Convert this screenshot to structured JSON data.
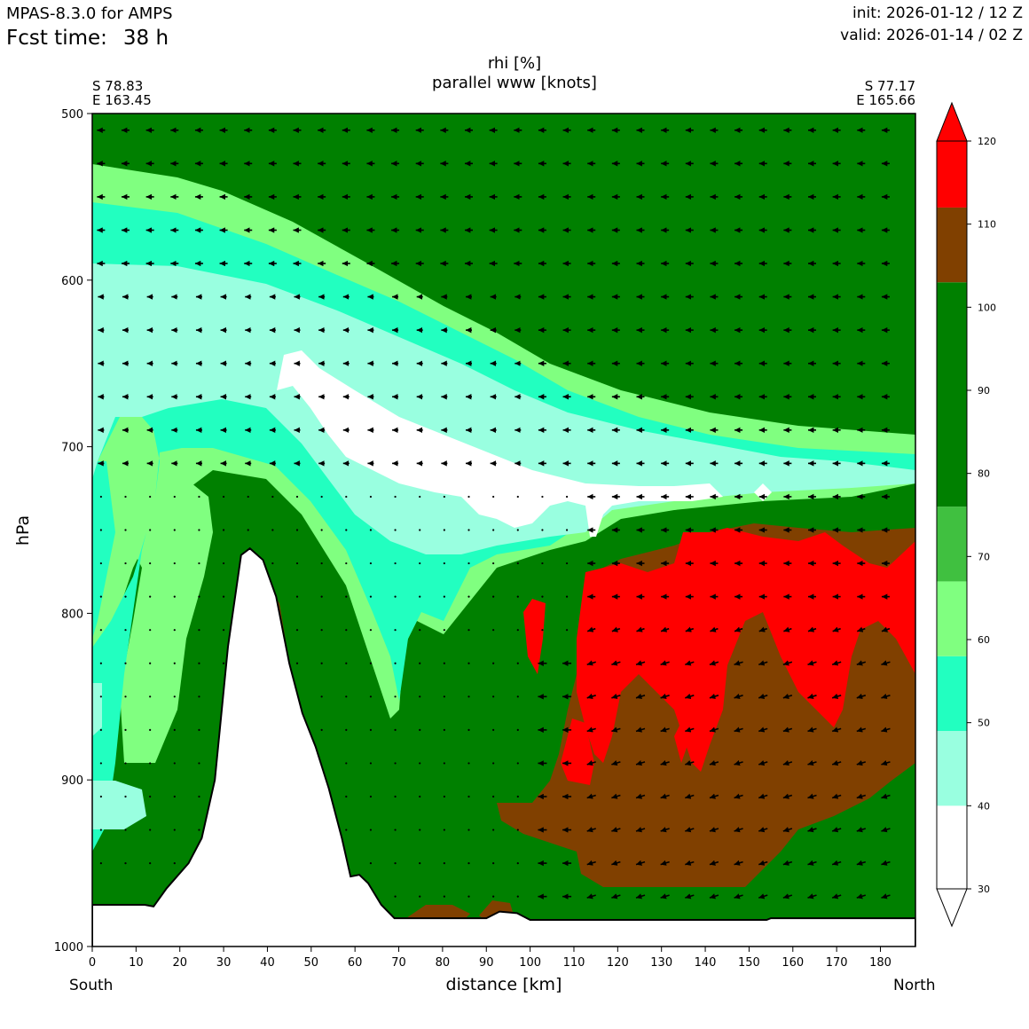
{
  "header": {
    "model": "MPAS-8.3.0 for AMPS",
    "fcst_label": "Fcst time:",
    "fcst_value": "38 h",
    "init": "init: 2026-01-12 / 12 Z",
    "valid": "valid: 2026-01-14 / 02 Z"
  },
  "endpoints": {
    "left_lat": "S 78.83",
    "left_lon": "E 163.45",
    "right_lat": "S 77.17",
    "right_lon": "E 165.66",
    "left_dir": "South",
    "right_dir": "North"
  },
  "chart_data": {
    "type": "cross-section contour",
    "title": "rhi [%]",
    "subtitle": "parallel www [knots]",
    "xlabel": "distance [km]",
    "ylabel": "hPa",
    "xlim": [
      0,
      188
    ],
    "ylim": [
      1000,
      500
    ],
    "xticks": [
      0,
      10,
      20,
      30,
      40,
      50,
      60,
      70,
      80,
      90,
      100,
      110,
      120,
      130,
      140,
      150,
      160,
      170,
      180
    ],
    "yticks": [
      500,
      600,
      700,
      800,
      900,
      1000
    ],
    "colorbar": {
      "levels": [
        30,
        40,
        50,
        60,
        70,
        80,
        90,
        100,
        110,
        120
      ],
      "colors": [
        "#ffffff",
        "#99ffe0",
        "#22ffc0",
        "#80ff80",
        "#40c040",
        "#008000",
        "#008000",
        "#804000",
        "#ff0000"
      ],
      "extend": "both",
      "under_color": "#ffffff",
      "over_color": "#ff0000"
    },
    "terrain_km_hpa": [
      [
        0,
        975
      ],
      [
        12,
        975
      ],
      [
        14,
        976
      ],
      [
        17,
        965
      ],
      [
        22,
        950
      ],
      [
        25,
        935
      ],
      [
        28,
        900
      ],
      [
        31,
        820
      ],
      [
        34,
        765
      ],
      [
        36,
        761
      ],
      [
        39,
        768
      ],
      [
        42,
        790
      ],
      [
        45,
        830
      ],
      [
        48,
        860
      ],
      [
        51,
        880
      ],
      [
        54,
        905
      ],
      [
        57,
        935
      ],
      [
        59,
        958
      ],
      [
        61,
        957
      ],
      [
        63,
        962
      ],
      [
        66,
        975
      ],
      [
        69,
        983
      ],
      [
        90,
        983
      ],
      [
        93,
        979
      ],
      [
        97,
        980
      ],
      [
        100,
        984
      ],
      [
        154,
        984
      ],
      [
        155,
        983
      ],
      [
        188,
        983
      ]
    ],
    "regions_rhi_approx": [
      {
        "rhi": "80-100",
        "where": "upper right above ~650-700 hPa and most of the lower troposphere north of 50 km"
      },
      {
        "rhi": "30-40",
        "where": "dry tongue around 650-750 hPa from ~45 to 150 km"
      },
      {
        "rhi": "100-110",
        "where": "near-surface 880-980 hPa from ~95 to 160 km"
      },
      {
        "rhi": ">110",
        "where": "760-870 hPa from ~110 to 188 km"
      }
    ],
    "wind_arrows": "leftward (southward) parallel wind at all levels; stronger near 850-950 hPa north of 100 km"
  }
}
